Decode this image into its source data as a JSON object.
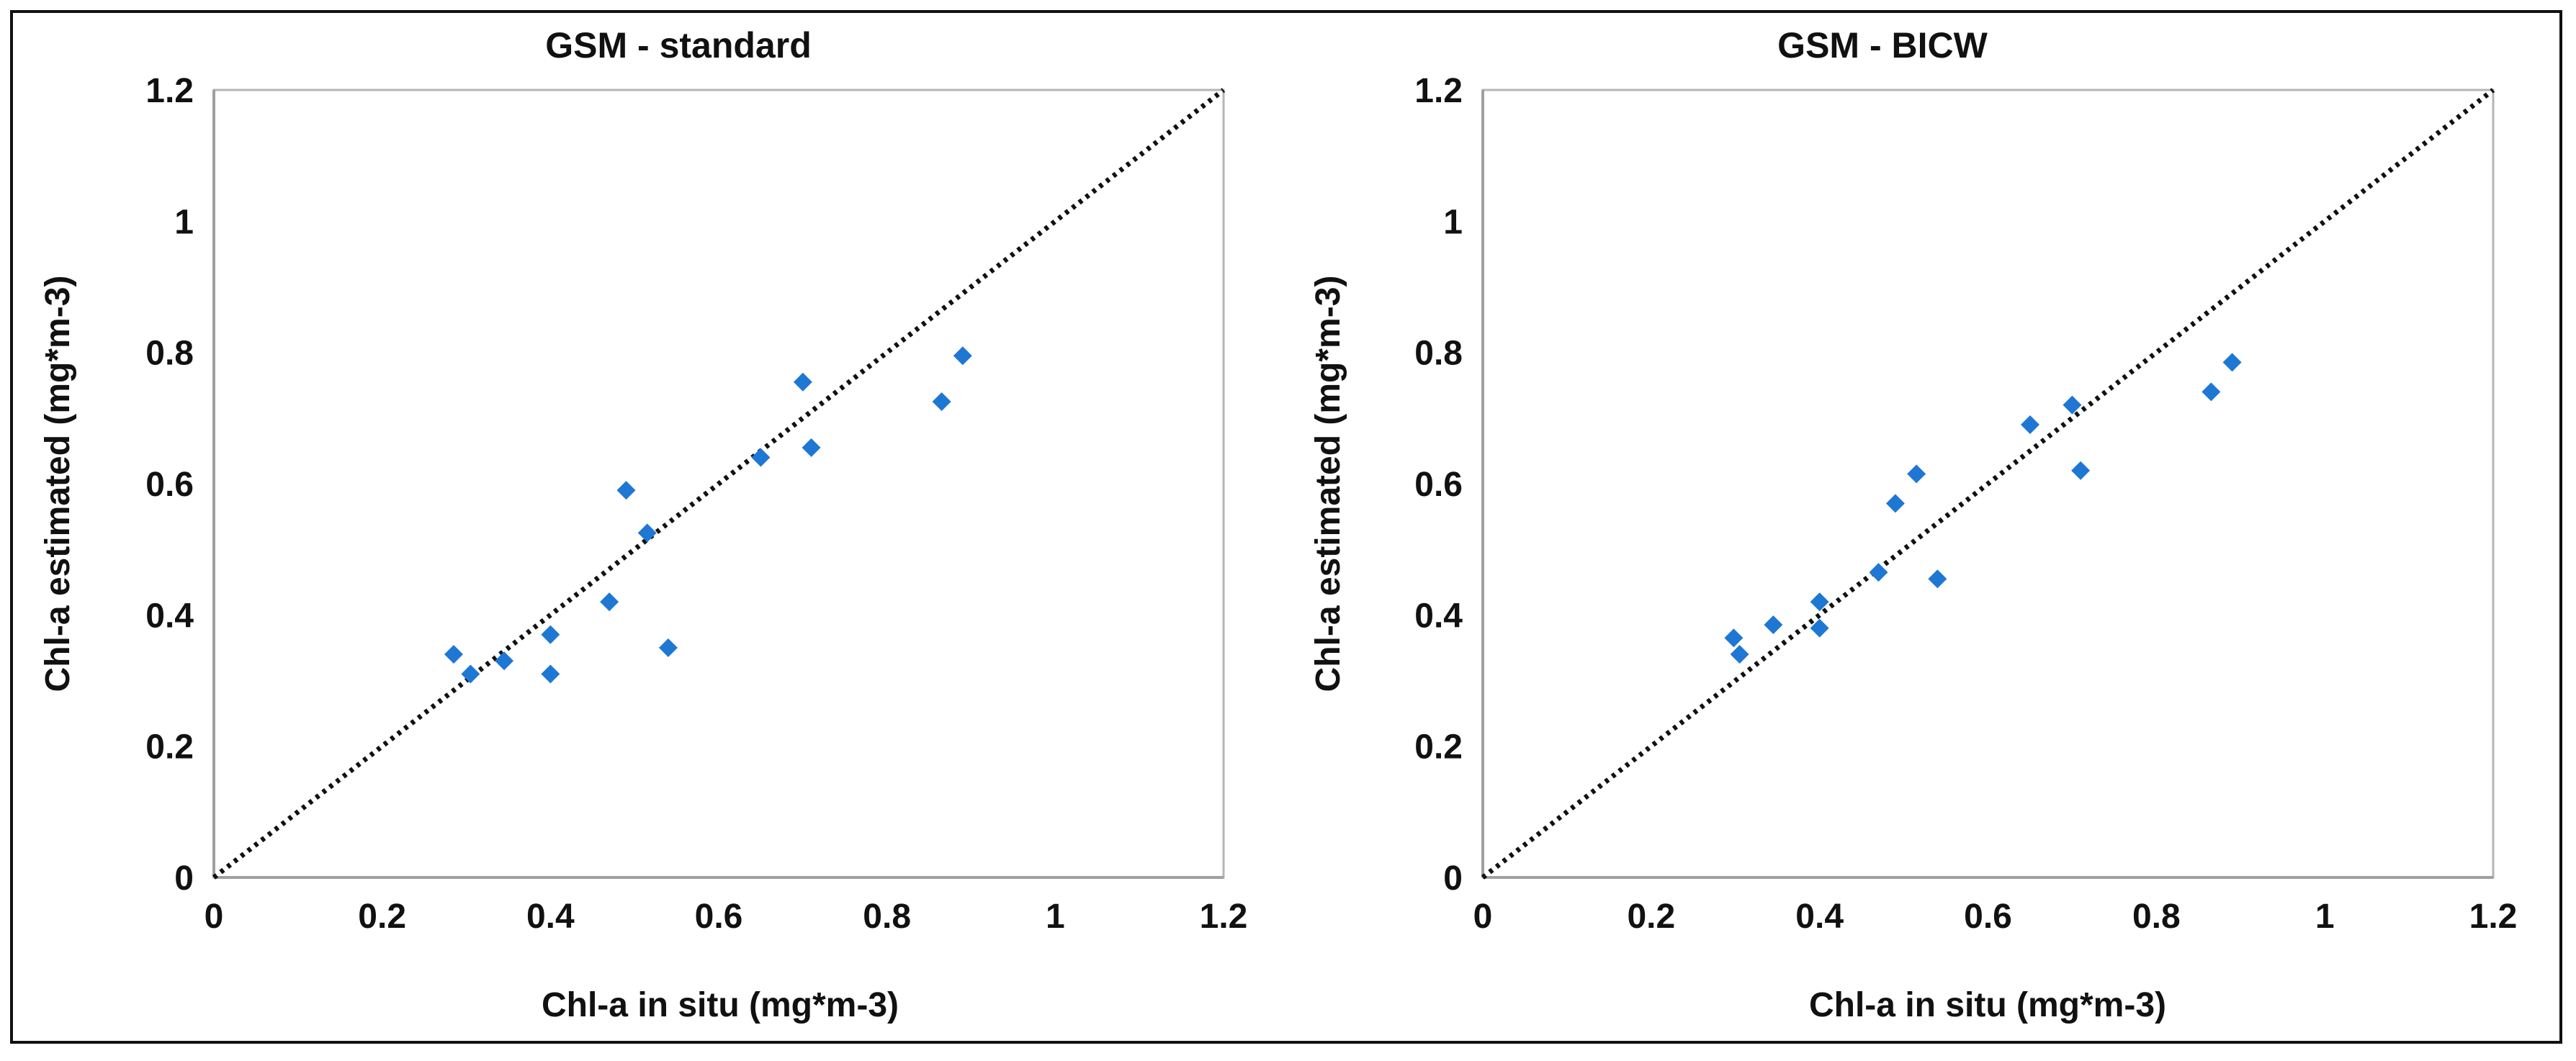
{
  "chart_data": [
    {
      "type": "scatter",
      "title": "GSM - standard",
      "xlabel": "Chl-a in situ (mg*m-3)",
      "ylabel": "Chl-a estimated (mg*m-3)",
      "xlim": [
        0,
        1.2
      ],
      "ylim": [
        0,
        1.2
      ],
      "xticks": [
        "0",
        "0.2",
        "0.4",
        "0.6",
        "0.8",
        "1",
        "1.2"
      ],
      "yticks": [
        "0",
        "0.2",
        "0.4",
        "0.6",
        "0.8",
        "1",
        "1.2"
      ],
      "grid": false,
      "reference_line": "1:1 dotted",
      "marker_color": "#1f77d4",
      "points": [
        [
          0.285,
          0.34
        ],
        [
          0.305,
          0.31
        ],
        [
          0.345,
          0.33
        ],
        [
          0.4,
          0.37
        ],
        [
          0.4,
          0.31
        ],
        [
          0.47,
          0.42
        ],
        [
          0.49,
          0.59
        ],
        [
          0.515,
          0.525
        ],
        [
          0.54,
          0.35
        ],
        [
          0.65,
          0.64
        ],
        [
          0.7,
          0.755
        ],
        [
          0.71,
          0.655
        ],
        [
          0.865,
          0.725
        ],
        [
          0.89,
          0.795
        ]
      ]
    },
    {
      "type": "scatter",
      "title": "GSM - BICW",
      "xlabel": "Chl-a in situ (mg*m-3)",
      "ylabel": "Chl-a estimated (mg*m-3)",
      "xlim": [
        0,
        1.2
      ],
      "ylim": [
        0,
        1.2
      ],
      "xticks": [
        "0",
        "0.2",
        "0.4",
        "0.6",
        "0.8",
        "1",
        "1.2"
      ],
      "yticks": [
        "0",
        "0.2",
        "0.4",
        "0.6",
        "0.8",
        "1",
        "1.2"
      ],
      "grid": false,
      "reference_line": "1:1 dotted",
      "marker_color": "#1f77d4",
      "points": [
        [
          0.298,
          0.365
        ],
        [
          0.305,
          0.34
        ],
        [
          0.345,
          0.385
        ],
        [
          0.4,
          0.38
        ],
        [
          0.4,
          0.42
        ],
        [
          0.47,
          0.465
        ],
        [
          0.49,
          0.57
        ],
        [
          0.515,
          0.615
        ],
        [
          0.54,
          0.455
        ],
        [
          0.65,
          0.69
        ],
        [
          0.7,
          0.72
        ],
        [
          0.71,
          0.62
        ],
        [
          0.865,
          0.74
        ],
        [
          0.89,
          0.785
        ]
      ]
    }
  ]
}
